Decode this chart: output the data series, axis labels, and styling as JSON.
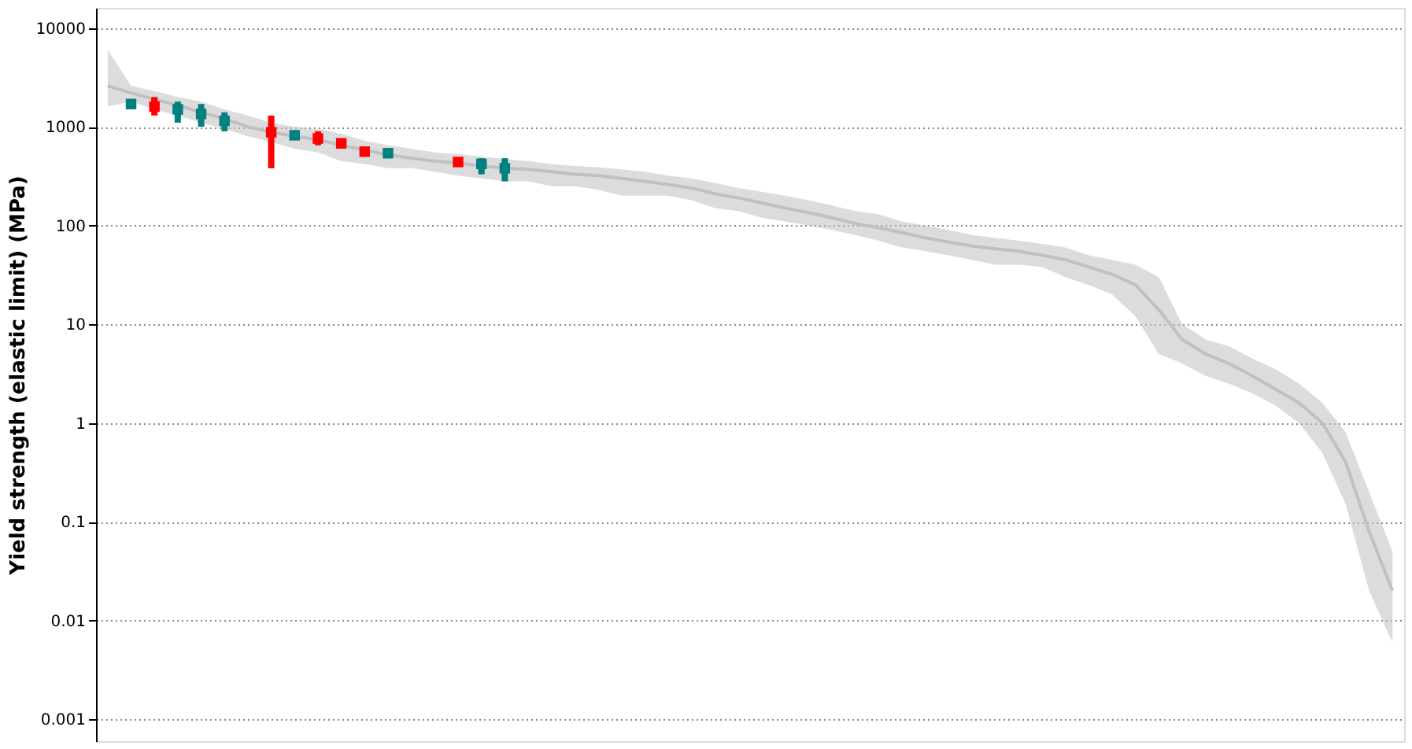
{
  "chart_data": {
    "type": "line",
    "ylabel": "Yield strength (elastic limit) (MPa)",
    "log": "y",
    "ylim": [
      0.0006,
      16000
    ],
    "yticks": [
      0.001,
      0.01,
      0.1,
      1,
      10,
      100,
      1000,
      10000
    ],
    "grid": "y",
    "tick_labels": "y",
    "categories": [
      null,
      null,
      null,
      null,
      null,
      null,
      null,
      null,
      null,
      null,
      null,
      null,
      null,
      null,
      null,
      null,
      null,
      null,
      null,
      null,
      null,
      null,
      null,
      null,
      null,
      null,
      null,
      null,
      null,
      null,
      null,
      null,
      null,
      null,
      null,
      null,
      null,
      null,
      null,
      null,
      null,
      null,
      null,
      null,
      null,
      null,
      null,
      null,
      null,
      null,
      null,
      null,
      null,
      null,
      null,
      null
    ],
    "series": [
      {
        "color": "#c0c0c0",
        "values": [
          2600,
          2200,
          1900,
          1650,
          1400,
          1200,
          1000,
          880,
          800,
          740,
          650,
          580,
          520,
          480,
          450,
          430,
          400,
          380,
          370,
          350,
          330,
          320,
          300,
          280,
          260,
          240,
          210,
          190,
          170,
          150,
          135,
          120,
          105,
          95,
          85,
          75,
          68,
          62,
          58,
          55,
          50,
          45,
          38,
          32,
          25,
          14,
          7,
          5,
          4,
          3,
          2.2,
          1.6,
          1,
          0.4,
          0.08,
          0.02
        ],
        "lower": [
          1600,
          1800,
          1500,
          1300,
          1100,
          950,
          800,
          700,
          600,
          550,
          450,
          420,
          380,
          380,
          350,
          320,
          300,
          280,
          280,
          250,
          250,
          230,
          200,
          200,
          200,
          180,
          150,
          140,
          120,
          110,
          100,
          90,
          80,
          70,
          60,
          55,
          50,
          45,
          40,
          40,
          38,
          30,
          25,
          20,
          12,
          5,
          4,
          3,
          2.5,
          2,
          1.5,
          1,
          0.5,
          0.15,
          0.02,
          0.006
        ],
        "upper": [
          6000,
          2600,
          2300,
          2000,
          1800,
          1500,
          1300,
          1100,
          1000,
          950,
          850,
          720,
          650,
          600,
          550,
          530,
          500,
          470,
          450,
          420,
          400,
          390,
          370,
          350,
          320,
          300,
          270,
          240,
          220,
          200,
          180,
          160,
          140,
          130,
          110,
          100,
          90,
          80,
          75,
          70,
          65,
          60,
          50,
          45,
          40,
          30,
          10,
          7,
          6,
          4.5,
          3.5,
          2.5,
          1.6,
          0.8,
          0.2,
          0.05
        ]
      },
      {
        "type": "scatter",
        "color": "#ff0000",
        "values": [
          null,
          null,
          1600,
          null,
          null,
          null,
          null,
          880,
          null,
          760,
          680,
          560,
          null,
          null,
          null,
          440,
          null,
          null,
          null,
          null,
          null,
          null,
          null,
          null,
          null,
          null,
          null,
          null,
          null,
          null,
          null,
          null,
          null,
          null,
          null,
          null,
          null,
          null,
          null,
          null,
          null,
          null,
          null,
          null,
          null,
          null,
          null,
          null,
          null,
          null,
          null,
          null,
          null,
          null,
          null,
          null
        ],
        "errors": [
          null,
          null,
          [
            1300,
            2000
          ],
          null,
          null,
          null,
          null,
          [
            380,
            1300
          ],
          null,
          [
            650,
            900
          ],
          [
            600,
            760
          ],
          [
            500,
            630
          ],
          null,
          null,
          null,
          [
            400,
            480
          ],
          null,
          null,
          null,
          null,
          null,
          null,
          null,
          null,
          null,
          null,
          null,
          null,
          null,
          null,
          null,
          null,
          null,
          null,
          null,
          null,
          null,
          null,
          null,
          null,
          null,
          null,
          null,
          null,
          null,
          null,
          null,
          null,
          null,
          null,
          null,
          null,
          null,
          null,
          null,
          null
        ]
      },
      {
        "type": "scatter",
        "color": "#008080",
        "values": [
          null,
          1700,
          null,
          1500,
          1350,
          1150,
          null,
          null,
          820,
          null,
          null,
          null,
          540,
          null,
          null,
          null,
          420,
          380,
          null,
          null,
          null,
          null,
          null,
          null,
          null,
          null,
          null,
          null,
          null,
          null,
          null,
          null,
          null,
          null,
          null,
          null,
          null,
          null,
          null,
          null,
          null,
          null,
          null,
          null,
          null,
          null,
          null,
          null,
          null,
          null,
          null,
          null,
          null,
          null,
          null,
          null
        ],
        "errors": [
          null,
          [
            1500,
            1900
          ],
          null,
          [
            1100,
            1800
          ],
          [
            1000,
            1700
          ],
          [
            900,
            1400
          ],
          null,
          null,
          [
            750,
            900
          ],
          null,
          null,
          null,
          [
            480,
            600
          ],
          null,
          null,
          null,
          [
            330,
            480
          ],
          [
            280,
            480
          ],
          null,
          null,
          null,
          null,
          null,
          null,
          null,
          null,
          null,
          null,
          null,
          null,
          null,
          null,
          null,
          null,
          null,
          null,
          null,
          null,
          null,
          null,
          null,
          null,
          null,
          null,
          null,
          null,
          null,
          null,
          null,
          null,
          null,
          null,
          null,
          null,
          null,
          null
        ]
      }
    ]
  }
}
